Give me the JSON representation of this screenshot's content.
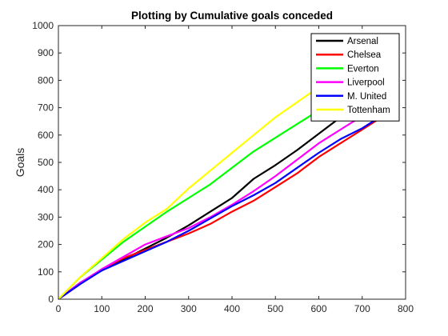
{
  "chart_data": {
    "type": "line",
    "title": "Plotting by Cumulative goals conceded",
    "xlabel": "",
    "ylabel": "Goals",
    "xlim": [
      0,
      800
    ],
    "ylim": [
      0,
      1000
    ],
    "xticks": [
      0,
      100,
      200,
      300,
      400,
      500,
      600,
      700,
      800
    ],
    "yticks": [
      0,
      100,
      200,
      300,
      400,
      500,
      600,
      700,
      800,
      900,
      1000
    ],
    "grid": false,
    "legend_position": "top-right",
    "series": [
      {
        "name": "Arsenal",
        "color": "#000000",
        "x": [
          0,
          50,
          100,
          150,
          200,
          250,
          300,
          350,
          400,
          450,
          500,
          550,
          600,
          650,
          700
        ],
        "values": [
          0,
          60,
          105,
          145,
          185,
          225,
          270,
          320,
          370,
          440,
          490,
          545,
          605,
          665,
          720
        ]
      },
      {
        "name": "Chelsea",
        "color": "#ff0000",
        "x": [
          0,
          50,
          100,
          150,
          200,
          250,
          300,
          350,
          400,
          450,
          500,
          550,
          600,
          650,
          700,
          735
        ],
        "values": [
          0,
          55,
          110,
          150,
          180,
          210,
          240,
          275,
          320,
          360,
          410,
          460,
          520,
          570,
          620,
          655
        ]
      },
      {
        "name": "Everton",
        "color": "#00ff00",
        "x": [
          0,
          50,
          100,
          150,
          200,
          250,
          300,
          350,
          400,
          450,
          500,
          550,
          600,
          650,
          700
        ],
        "values": [
          0,
          80,
          145,
          210,
          265,
          320,
          370,
          420,
          480,
          540,
          590,
          640,
          690,
          740,
          780
        ]
      },
      {
        "name": "Liverpool",
        "color": "#ff00ff",
        "x": [
          0,
          50,
          100,
          150,
          200,
          250,
          300,
          350,
          400,
          450,
          500,
          550,
          600,
          650,
          700,
          735
        ],
        "values": [
          0,
          60,
          110,
          155,
          200,
          230,
          260,
          300,
          345,
          395,
          450,
          510,
          570,
          620,
          670,
          710
        ]
      },
      {
        "name": "M. United",
        "color": "#0000ff",
        "x": [
          0,
          50,
          100,
          150,
          200,
          250,
          300,
          350,
          400,
          450,
          500,
          550,
          600,
          650,
          700,
          735
        ],
        "values": [
          0,
          55,
          105,
          140,
          175,
          210,
          250,
          295,
          340,
          380,
          425,
          480,
          535,
          585,
          625,
          660
        ]
      },
      {
        "name": "Tottenham",
        "color": "#ffff00",
        "x": [
          0,
          50,
          100,
          150,
          200,
          250,
          300,
          350,
          400,
          450,
          500,
          550,
          600
        ],
        "values": [
          0,
          80,
          150,
          220,
          280,
          330,
          405,
          470,
          535,
          600,
          665,
          720,
          775
        ]
      }
    ]
  }
}
